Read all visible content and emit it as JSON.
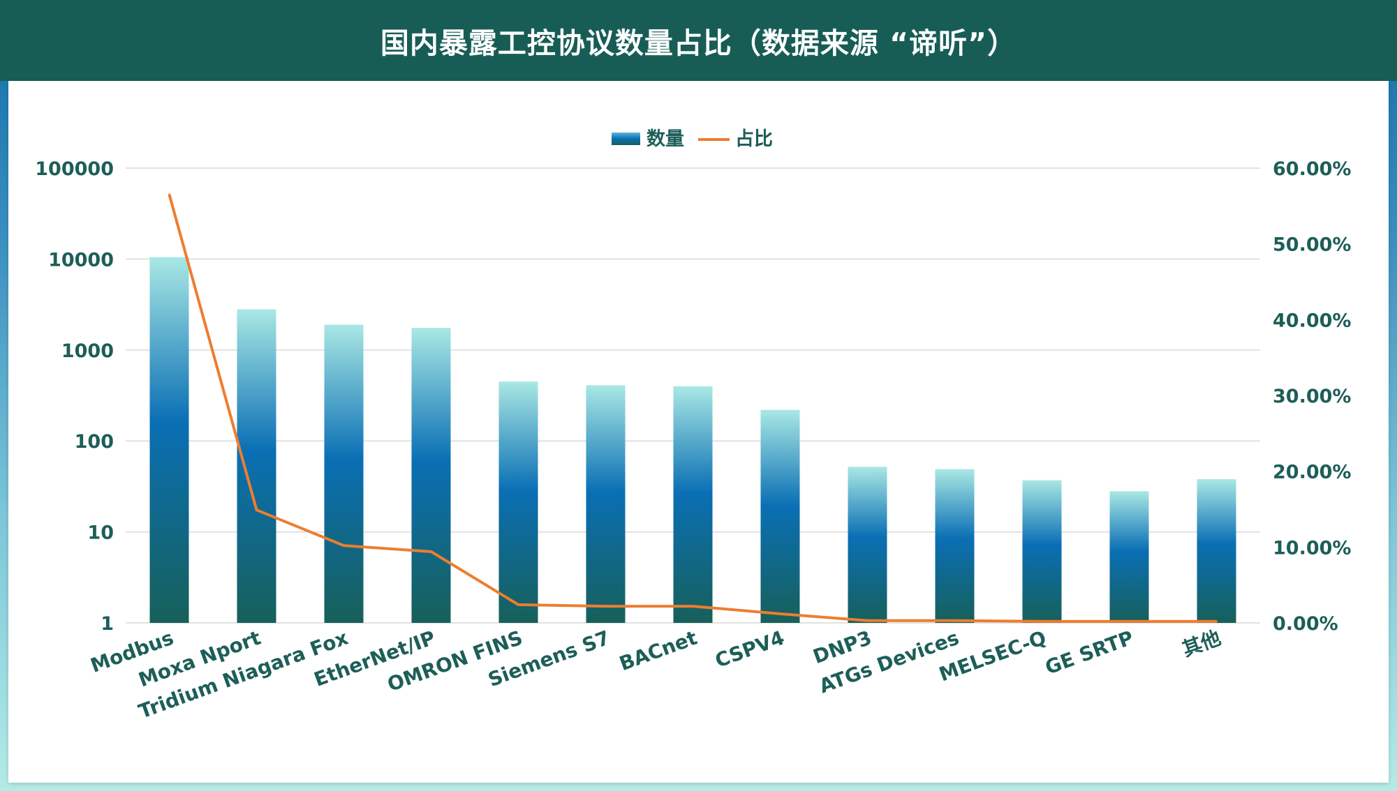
{
  "title": "国内暴露工控协议数量占比（数据来源 “谛听”）",
  "legend": {
    "bar_label": "数量",
    "line_label": "占比"
  },
  "colors": {
    "header_bg": "#175d56",
    "bar_top": "#a9e8e4",
    "bar_mid": "#0a6fb4",
    "bar_bottom": "#17605a",
    "line": "#ed7d31",
    "text": "#1d5e58",
    "grid": "#d9d9d9"
  },
  "chart_data": {
    "type": "bar",
    "title": "国内暴露工控协议数量占比（数据来源 “谛听”）",
    "categories": [
      "Modbus",
      "Moxa Nport",
      "Tridium Niagara Fox",
      "EtherNet/IP",
      "OMRON FINS",
      "Siemens S7",
      "BACnet",
      "CSPV4",
      "DNP3",
      "ATGs Devices",
      "MELSEC-Q",
      "GE SRTP",
      "其他"
    ],
    "series": [
      {
        "name": "数量",
        "type": "bar",
        "axis": "left",
        "values": [
          10500,
          2800,
          1900,
          1750,
          450,
          410,
          400,
          220,
          52,
          49,
          37,
          28,
          38
        ]
      },
      {
        "name": "占比",
        "type": "line",
        "axis": "right",
        "values": [
          0.565,
          0.149,
          0.102,
          0.094,
          0.024,
          0.022,
          0.022,
          0.012,
          0.003,
          0.003,
          0.002,
          0.002,
          0.002
        ]
      }
    ],
    "y_left": {
      "scale": "log",
      "ylim": [
        1,
        100000
      ],
      "ticks": [
        1,
        10,
        100,
        1000,
        10000,
        100000
      ],
      "tick_labels": [
        "1",
        "10",
        "100",
        "1000",
        "10000",
        "100000"
      ]
    },
    "y_right": {
      "scale": "linear",
      "ylim": [
        0,
        0.6
      ],
      "ticks": [
        0,
        0.1,
        0.2,
        0.3,
        0.4,
        0.5,
        0.6
      ],
      "tick_labels": [
        "0.00%",
        "10.00%",
        "20.00%",
        "30.00%",
        "40.00%",
        "50.00%",
        "60.00%"
      ]
    },
    "grid": true,
    "legend_position": "top-center"
  }
}
